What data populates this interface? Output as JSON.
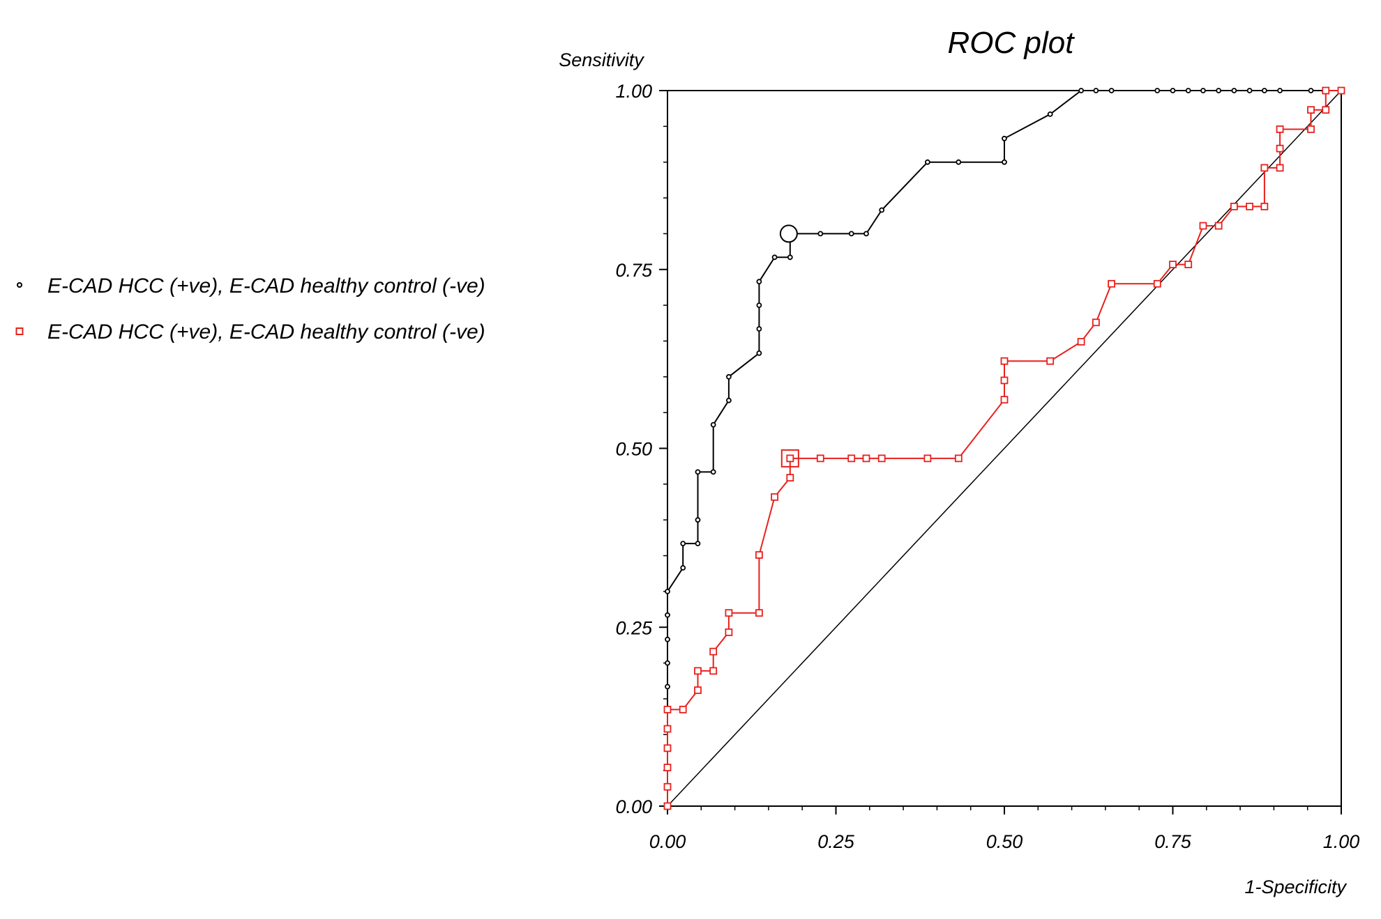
{
  "chart_data": {
    "type": "line",
    "title": "ROC plot",
    "xlabel": "1-Specificity",
    "ylabel": "Sensitivity",
    "xlim": [
      0,
      1
    ],
    "ylim": [
      0,
      1
    ],
    "x_ticks": [
      "0.00",
      "0.25",
      "0.50",
      "0.75",
      "1.00"
    ],
    "y_ticks": [
      "0.00",
      "0.25",
      "0.50",
      "0.75",
      "1.00"
    ],
    "grid": false,
    "legend_position": "left",
    "reference_line": [
      [
        0,
        0
      ],
      [
        1,
        1
      ]
    ],
    "series": [
      {
        "name": "E-CAD HCC (+ve), E-CAD healthy control (-ve)",
        "color": "#000000",
        "marker": "circle",
        "optimal_point": [
          0.18,
          0.8
        ],
        "points": [
          [
            0.0,
            0.0
          ],
          [
            0.0,
            0.167
          ],
          [
            0.0,
            0.2
          ],
          [
            0.0,
            0.233
          ],
          [
            0.0,
            0.267
          ],
          [
            0.0,
            0.3
          ],
          [
            0.023,
            0.333
          ],
          [
            0.023,
            0.367
          ],
          [
            0.045,
            0.367
          ],
          [
            0.045,
            0.4
          ],
          [
            0.045,
            0.467
          ],
          [
            0.068,
            0.467
          ],
          [
            0.068,
            0.533
          ],
          [
            0.091,
            0.567
          ],
          [
            0.091,
            0.6
          ],
          [
            0.136,
            0.633
          ],
          [
            0.136,
            0.667
          ],
          [
            0.136,
            0.7
          ],
          [
            0.136,
            0.733
          ],
          [
            0.159,
            0.767
          ],
          [
            0.182,
            0.767
          ],
          [
            0.182,
            0.8
          ],
          [
            0.227,
            0.8
          ],
          [
            0.273,
            0.8
          ],
          [
            0.295,
            0.8
          ],
          [
            0.318,
            0.833
          ],
          [
            0.386,
            0.9
          ],
          [
            0.432,
            0.9
          ],
          [
            0.5,
            0.9
          ],
          [
            0.5,
            0.933
          ],
          [
            0.568,
            0.967
          ],
          [
            0.614,
            1.0
          ],
          [
            0.636,
            1.0
          ],
          [
            0.659,
            1.0
          ],
          [
            0.727,
            1.0
          ],
          [
            0.75,
            1.0
          ],
          [
            0.773,
            1.0
          ],
          [
            0.795,
            1.0
          ],
          [
            0.818,
            1.0
          ],
          [
            0.841,
            1.0
          ],
          [
            0.864,
            1.0
          ],
          [
            0.886,
            1.0
          ],
          [
            0.909,
            1.0
          ],
          [
            0.955,
            1.0
          ],
          [
            0.977,
            1.0
          ],
          [
            1.0,
            1.0
          ]
        ]
      },
      {
        "name": "E-CAD HCC (+ve), E-CAD healthy control (-ve)",
        "color": "#e8201c",
        "marker": "square",
        "optimal_point": [
          0.182,
          0.486
        ],
        "points": [
          [
            0.0,
            0.0
          ],
          [
            0.0,
            0.027
          ],
          [
            0.0,
            0.054
          ],
          [
            0.0,
            0.081
          ],
          [
            0.0,
            0.108
          ],
          [
            0.0,
            0.135
          ],
          [
            0.023,
            0.135
          ],
          [
            0.045,
            0.162
          ],
          [
            0.045,
            0.189
          ],
          [
            0.068,
            0.189
          ],
          [
            0.068,
            0.216
          ],
          [
            0.091,
            0.243
          ],
          [
            0.091,
            0.27
          ],
          [
            0.136,
            0.27
          ],
          [
            0.136,
            0.351
          ],
          [
            0.159,
            0.432
          ],
          [
            0.182,
            0.459
          ],
          [
            0.182,
            0.486
          ],
          [
            0.227,
            0.486
          ],
          [
            0.273,
            0.486
          ],
          [
            0.295,
            0.486
          ],
          [
            0.318,
            0.486
          ],
          [
            0.386,
            0.486
          ],
          [
            0.432,
            0.486
          ],
          [
            0.5,
            0.568
          ],
          [
            0.5,
            0.595
          ],
          [
            0.5,
            0.622
          ],
          [
            0.568,
            0.622
          ],
          [
            0.614,
            0.649
          ],
          [
            0.636,
            0.676
          ],
          [
            0.659,
            0.73
          ],
          [
            0.727,
            0.73
          ],
          [
            0.75,
            0.757
          ],
          [
            0.773,
            0.757
          ],
          [
            0.795,
            0.811
          ],
          [
            0.818,
            0.811
          ],
          [
            0.841,
            0.838
          ],
          [
            0.864,
            0.838
          ],
          [
            0.886,
            0.838
          ],
          [
            0.886,
            0.892
          ],
          [
            0.909,
            0.892
          ],
          [
            0.909,
            0.919
          ],
          [
            0.909,
            0.946
          ],
          [
            0.955,
            0.946
          ],
          [
            0.955,
            0.973
          ],
          [
            0.977,
            0.973
          ],
          [
            0.977,
            1.0
          ],
          [
            1.0,
            1.0
          ]
        ]
      }
    ]
  }
}
